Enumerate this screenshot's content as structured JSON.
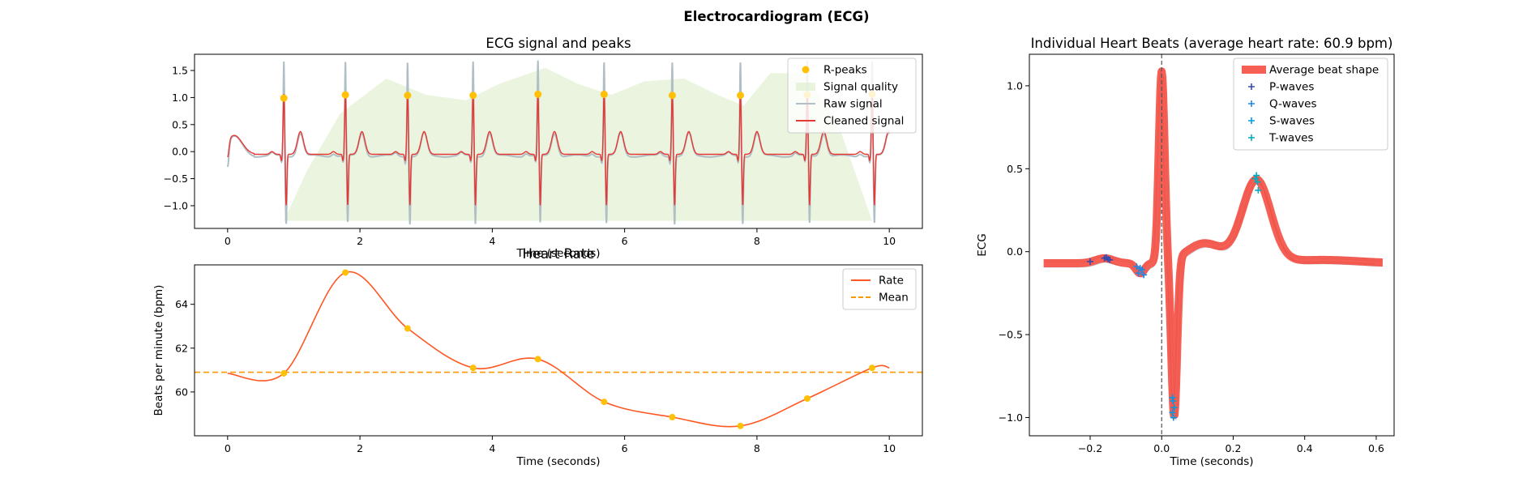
{
  "figure": {
    "suptitle": "Electrocardiogram (ECG)"
  },
  "colors": {
    "rpeak": "#FFC107",
    "quality": "#DCEDC8",
    "raw": "#B0BEC5",
    "cleaned": "#E53935",
    "rate": "#FF5722",
    "mean": "#FF9800",
    "avg_beat": "#F44336",
    "beats": "#BDBDBD",
    "p": "#3949AB",
    "q": "#1E88E5",
    "s": "#039BE5",
    "t": "#00ACC1",
    "vline": "#555555"
  },
  "chart_data": [
    {
      "id": "ecg",
      "type": "line",
      "title": "ECG signal and peaks",
      "xlabel": "Time (seconds)",
      "ylabel": "",
      "xlim": [
        -0.5,
        10.5
      ],
      "ylim": [
        -1.42,
        1.8
      ],
      "xticks": [
        0,
        2,
        4,
        6,
        8,
        10
      ],
      "yticks": [
        -1.0,
        -0.5,
        0.0,
        0.5,
        1.0,
        1.5
      ],
      "ytick_labels": [
        "−1.0",
        "−0.5",
        "0.0",
        "0.5",
        "1.0",
        "1.5"
      ],
      "legend": {
        "position": "top-right",
        "entries": [
          "R-peaks",
          "Signal quality",
          "Raw signal",
          "Cleaned signal"
        ]
      },
      "r_peaks": {
        "x": [
          0.85,
          1.78,
          2.72,
          3.71,
          4.69,
          5.69,
          6.72,
          7.75,
          8.76,
          9.74
        ],
        "y": [
          0.99,
          1.05,
          1.04,
          1.04,
          1.06,
          1.06,
          1.04,
          1.04,
          1.05,
          1.06
        ]
      },
      "quality": {
        "x": [
          0.85,
          1.2,
          1.7,
          2.4,
          3.0,
          3.6,
          4.1,
          4.8,
          5.3,
          5.8,
          6.3,
          6.9,
          7.4,
          7.8,
          8.2,
          8.7,
          9.2,
          9.74
        ],
        "y": [
          -1.28,
          -0.35,
          0.7,
          1.35,
          1.05,
          0.95,
          1.25,
          1.55,
          1.25,
          1.05,
          1.3,
          1.35,
          1.05,
          0.85,
          1.45,
          1.45,
          0.6,
          -1.28
        ]
      }
    },
    {
      "id": "rate",
      "type": "line",
      "title": "Heart Rate",
      "xlabel": "Time (seconds)",
      "ylabel": "Beats per minute (bpm)",
      "xlim": [
        -0.5,
        10.5
      ],
      "ylim": [
        58.0,
        65.8
      ],
      "xticks": [
        0,
        2,
        4,
        6,
        8,
        10
      ],
      "yticks": [
        60,
        62,
        64
      ],
      "legend": {
        "position": "top-right",
        "entries": [
          "Rate",
          "Mean"
        ]
      },
      "mean": 60.9,
      "points": {
        "x": [
          0.85,
          1.78,
          2.72,
          3.71,
          4.69,
          5.69,
          6.72,
          7.75,
          8.76,
          9.74
        ],
        "y": [
          60.85,
          65.45,
          62.9,
          61.1,
          61.5,
          59.55,
          58.85,
          58.45,
          59.7,
          61.1
        ]
      },
      "ends": {
        "x0": 0.0,
        "x1": 10.0
      }
    },
    {
      "id": "beats",
      "type": "line",
      "title": "Individual Heart Beats (average heart rate: 60.9 bpm)",
      "xlabel": "Time (seconds)",
      "ylabel": "ECG",
      "xlim": [
        -0.37,
        0.65
      ],
      "ylim": [
        -1.11,
        1.19
      ],
      "xticks": [
        -0.2,
        0.0,
        0.2,
        0.4,
        0.6
      ],
      "xtick_labels": [
        "−0.2",
        "0.0",
        "0.2",
        "0.4",
        "0.6"
      ],
      "yticks": [
        -1.0,
        -0.5,
        0.0,
        0.5,
        1.0
      ],
      "ytick_labels": [
        "−1.0",
        "−0.5",
        "0.0",
        "0.5",
        "1.0"
      ],
      "legend": {
        "position": "top-right",
        "entries": [
          "Average beat shape",
          "P-waves",
          "Q-waves",
          "S-waves",
          "T-waves"
        ]
      },
      "p_waves": {
        "x": [
          -0.2,
          -0.16,
          -0.155,
          -0.15,
          -0.145
        ],
        "y": [
          -0.06,
          -0.04,
          -0.035,
          -0.045,
          -0.05
        ]
      },
      "q_waves": {
        "x": [
          -0.07,
          -0.065,
          -0.06,
          -0.055,
          -0.05
        ],
        "y": [
          -0.09,
          -0.13,
          -0.1,
          -0.11,
          -0.14
        ]
      },
      "s_waves": {
        "x": [
          0.03,
          0.032,
          0.035,
          0.03,
          0.033
        ],
        "y": [
          -0.88,
          -0.9,
          -0.94,
          -0.97,
          -1.0
        ]
      },
      "t_waves": {
        "x": [
          0.262,
          0.265,
          0.268,
          0.27
        ],
        "y": [
          0.44,
          0.46,
          0.42,
          0.37
        ]
      }
    }
  ]
}
